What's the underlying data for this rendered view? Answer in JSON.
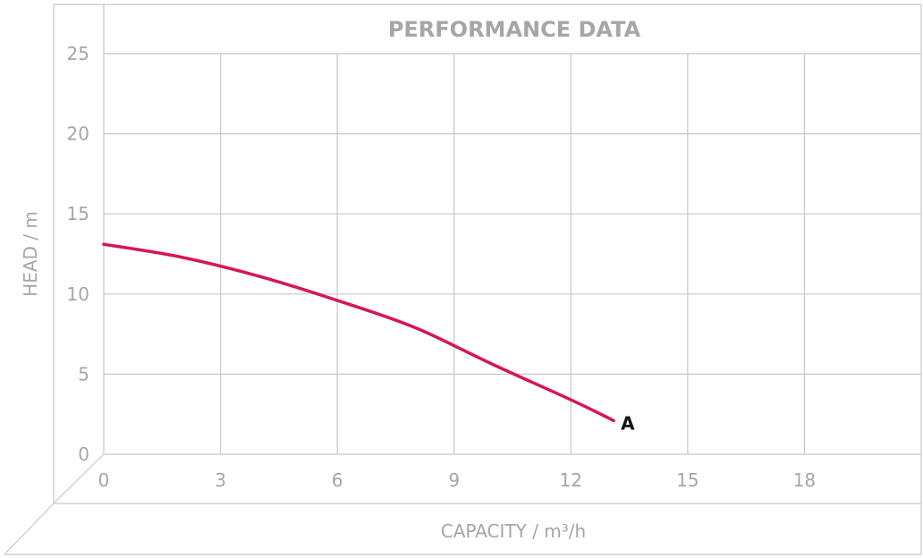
{
  "chart_data": {
    "type": "line",
    "title": "PERFORMANCE DATA",
    "xlabel": "CAPACITY / m³/h",
    "ylabel": "HEAD / m",
    "xlim": [
      0,
      21
    ],
    "ylim": [
      0,
      25
    ],
    "x_ticks": [
      0,
      3,
      6,
      9,
      12,
      15,
      18
    ],
    "y_ticks": [
      0,
      5,
      10,
      15,
      20,
      25
    ],
    "grid": true,
    "series": [
      {
        "name": "A",
        "color": "#d6155a",
        "x": [
          0,
          2,
          4,
          6,
          8,
          10,
          12,
          13.1
        ],
        "y": [
          13.1,
          12.3,
          11.1,
          9.6,
          7.9,
          5.6,
          3.4,
          2.1
        ]
      }
    ]
  }
}
